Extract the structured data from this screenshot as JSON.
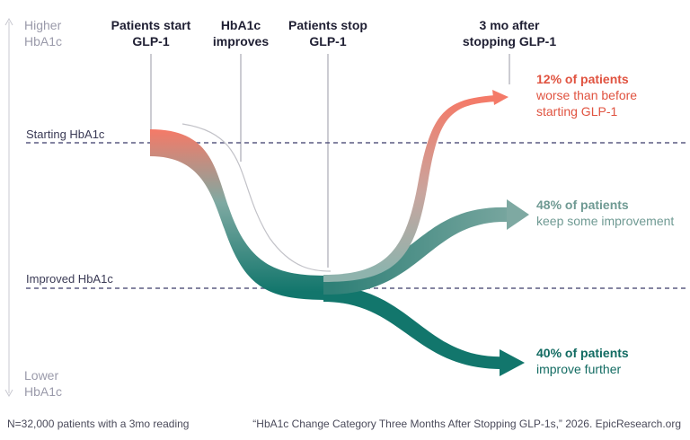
{
  "axis": {
    "top_label": [
      "Higher",
      "HbA1c"
    ],
    "bottom_label": [
      "Lower",
      "HbA1c"
    ]
  },
  "stages": [
    {
      "lines": [
        "Patients start",
        "GLP-1"
      ]
    },
    {
      "lines": [
        "HbA1c",
        "improves"
      ]
    },
    {
      "lines": [
        "Patients stop",
        "GLP-1"
      ]
    },
    {
      "lines": [
        "3 mo after",
        "stopping GLP-1"
      ]
    }
  ],
  "levels": {
    "starting": "Starting HbA1c",
    "improved": "Improved HbA1c"
  },
  "outcomes": [
    {
      "percent": 12,
      "headline": "12% of patients",
      "lines": [
        "worse than before",
        "starting GLP-1"
      ],
      "color": "#e05340",
      "flow_color": "#f47a68"
    },
    {
      "percent": 48,
      "headline": "48% of patients",
      "lines": [
        "keep some improvement"
      ],
      "color": "#6f9a93",
      "flow_color": "#7ea9a2"
    },
    {
      "percent": 40,
      "headline": "40% of patients",
      "lines": [
        "improve further"
      ],
      "color": "#126b62",
      "flow_color": "#12766c"
    }
  ],
  "colors": {
    "start_flow": "#f47a68",
    "mid_flow": "#7ea9a2",
    "end_flow": "#12766c",
    "dashed_line": "#5b5b82",
    "axis": "#c8c8d0"
  },
  "footer": {
    "left": "N=32,000 patients with a 3mo reading",
    "right": "“HbA1c Change Category Three Months After Stopping GLP-1s,” 2026. EpicResearch.org"
  }
}
